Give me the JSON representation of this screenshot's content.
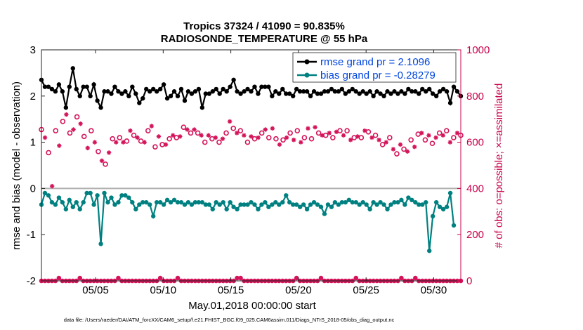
{
  "chart_data": {
    "type": "line",
    "title": "Tropics 37324 / 41090 = 90.835%",
    "subtitle": "RADIOSONDE_TEMPERATURE @ 55 hPa",
    "xlabel": "May.01,2018 00:00:00 start",
    "ylabel": "rmse and bias (model - observation)",
    "ylabel_right": "# of obs: o=possible; ×=assimilated",
    "ylim": [
      -2,
      3
    ],
    "yticks": [
      "-2",
      "-1",
      "0",
      "1",
      "2",
      "3"
    ],
    "xlim": [
      1,
      32
    ],
    "xticks": [
      5,
      10,
      15,
      20,
      25,
      30
    ],
    "xtick_labels": [
      "05/05",
      "05/10",
      "05/15",
      "05/20",
      "05/25",
      "05/30"
    ],
    "ylim_right": [
      0,
      1000
    ],
    "yticks_right": [
      "0",
      "200",
      "400",
      "600",
      "800",
      "1000"
    ],
    "series": [
      {
        "name": "rmse grand pr = 2.1096",
        "color": "#000000",
        "marker": "filled-circle",
        "values": [
          2.35,
          2.2,
          2.2,
          2.15,
          2.1,
          2.25,
          2.1,
          1.75,
          2.2,
          2.6,
          2.15,
          2.0,
          2.2,
          2.2,
          2.0,
          2.25,
          1.9,
          1.75,
          2.1,
          2.1,
          2.05,
          2.2,
          2.1,
          2.05,
          2.1,
          2.0,
          2.2,
          2.05,
          1.85,
          1.95,
          2.15,
          2.1,
          2.15,
          2.1,
          2.15,
          2.25,
          1.95,
          2.0,
          2.1,
          2.0,
          2.15,
          1.9,
          2.1,
          2.05,
          2.1,
          2.15,
          1.75,
          2.05,
          2.05,
          2.1,
          2.15,
          2.05,
          2.15,
          2.1,
          2.2,
          2.35,
          2.1,
          2.05,
          2.1,
          2.15,
          2.1,
          2.2,
          2.05,
          2.2,
          2.2,
          2.2,
          2.0,
          2.1,
          2.05,
          2.15,
          2.05,
          2.05,
          2.0,
          2.15,
          2.1,
          2.1,
          2.1,
          2.0,
          2.1,
          2.05,
          2.05,
          2.1,
          2.1,
          2.15,
          2.1,
          2.1,
          2.15,
          2.05,
          2.1,
          2.15,
          2.1,
          2.05,
          2.1,
          2.05,
          2.1,
          2.0,
          2.1,
          2.05,
          2.0,
          2.1,
          2.05,
          2.1,
          2.05,
          2.1,
          2.05,
          2.15,
          2.1,
          2.1,
          2.05,
          2.15,
          2.1,
          2.15,
          2.05,
          2.0,
          2.1,
          2.15,
          2.1,
          1.85,
          2.2,
          2.1,
          2.0
        ]
      },
      {
        "name": "bias grand pr = -0.28279",
        "color": "#008080",
        "marker": "filled-circle",
        "values": [
          -0.35,
          -0.1,
          -0.15,
          -0.3,
          -0.35,
          -0.2,
          -0.3,
          -0.45,
          -0.25,
          -0.4,
          -0.3,
          -0.45,
          -0.3,
          -0.1,
          -0.1,
          -0.35,
          -0.15,
          -1.2,
          -0.1,
          -0.3,
          -0.2,
          -0.35,
          -0.3,
          -0.15,
          -0.15,
          -0.2,
          -0.3,
          -0.45,
          -0.35,
          -0.3,
          -0.3,
          -0.35,
          -0.6,
          -0.3,
          -0.3,
          -0.35,
          -0.25,
          -0.3,
          -0.25,
          -0.3,
          -0.3,
          -0.35,
          -0.3,
          -0.35,
          -0.3,
          -0.3,
          -0.3,
          -0.35,
          -0.35,
          -0.45,
          -0.3,
          -0.35,
          -0.3,
          -0.45,
          -0.3,
          -0.4,
          -0.45,
          -0.35,
          -0.35,
          -0.35,
          -0.3,
          -0.35,
          -0.45,
          -0.35,
          -0.3,
          -0.4,
          -0.35,
          -0.3,
          -0.35,
          -0.3,
          -0.15,
          -0.3,
          -0.35,
          -0.35,
          -0.4,
          -0.35,
          -0.45,
          -0.35,
          -0.3,
          -0.35,
          -0.4,
          -0.55,
          -0.35,
          -0.4,
          -0.3,
          -0.35,
          -0.3,
          -0.3,
          -0.25,
          -0.3,
          -0.3,
          -0.35,
          -0.3,
          -0.35,
          -0.45,
          -0.3,
          -0.35,
          -0.3,
          -0.35,
          -0.45,
          -0.35,
          -0.3,
          -0.3,
          -0.25,
          -0.35,
          -0.2,
          -0.25,
          -0.3,
          -0.35,
          -0.35,
          -0.3,
          -1.35,
          -0.6,
          -0.3,
          -0.4,
          -0.45,
          -0.4,
          -0.1,
          -0.8
        ]
      }
    ],
    "possible_obs": [
      655,
      620,
      555,
      410,
      650,
      585,
      690,
      720,
      640,
      655,
      710,
      680,
      625,
      575,
      650,
      600,
      560,
      520,
      505,
      555,
      615,
      600,
      620,
      600,
      605,
      650,
      630,
      620,
      605,
      600,
      650,
      670,
      580,
      625,
      590,
      590,
      615,
      630,
      620,
      625,
      665,
      655,
      640,
      655,
      640,
      630,
      600,
      630,
      615,
      620,
      600,
      615,
      640,
      690,
      660,
      640,
      650,
      630,
      600,
      625,
      615,
      620,
      640,
      655,
      620,
      660,
      615,
      590,
      610,
      620,
      640,
      610,
      650,
      600,
      620,
      660,
      615,
      665,
      640,
      630,
      630,
      640,
      620,
      645,
      650,
      630,
      650,
      610,
      620,
      625,
      620,
      650,
      645,
      620,
      630,
      610,
      590,
      600,
      620,
      570,
      550,
      590,
      570,
      560,
      610,
      580,
      635,
      640,
      610,
      630,
      595,
      620,
      640,
      630,
      650,
      600,
      620,
      640,
      630
    ]
  },
  "legend": {
    "rmse_label": "rmse grand pr = 2.1096",
    "bias_label": "bias grand pr = -0.28279"
  },
  "footer": {
    "data_file": "data file: /Users/raeder/DAI/ATM_forcXX/CAM6_setup/f.e21.FHIST_BGC.f09_025.CAM6assim.011/Diags_NTrS_2018-05/obs_diag_output.nc"
  },
  "colors": {
    "rmse": "#000000",
    "bias": "#008080",
    "obs": "#d4145a",
    "right_axis": "#c8004b",
    "legend_text": "#0044dd",
    "zero_line": "#b0b0b0"
  }
}
